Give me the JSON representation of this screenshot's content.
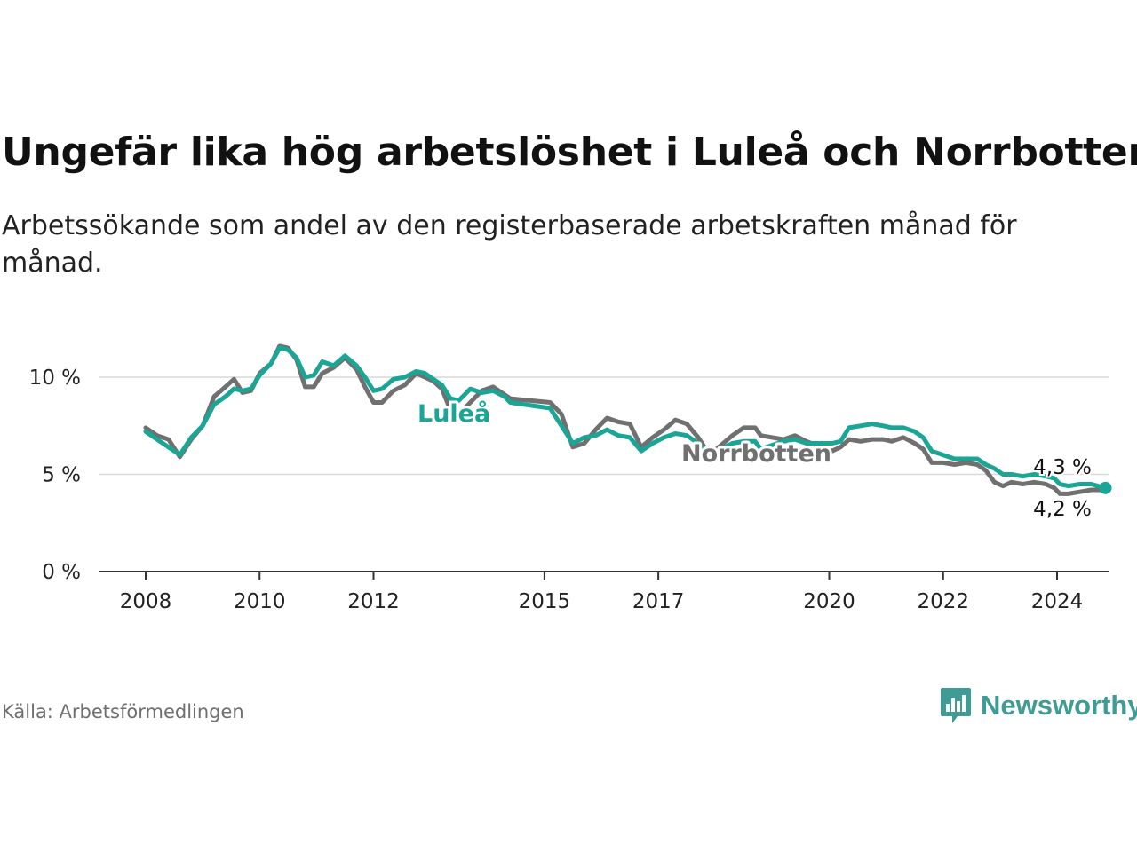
{
  "chart_data": {
    "type": "line",
    "title": "Ungefär lika hög arbetslöshet i Luleå och Norrbotten",
    "subtitle": "Arbetssökande som andel av den registerbaserade arbetskraften månad för månad.",
    "xlabel": "",
    "ylabel": "",
    "ylim": [
      0,
      12
    ],
    "xlim": [
      2007.85,
      2024.9
    ],
    "x_ticks": [
      {
        "value": 2008,
        "label": "2008"
      },
      {
        "value": 2010,
        "label": "2010"
      },
      {
        "value": 2012,
        "label": "2012"
      },
      {
        "value": 2015,
        "label": "2015"
      },
      {
        "value": 2017,
        "label": "2017"
      },
      {
        "value": 2020,
        "label": "2020"
      },
      {
        "value": 2022,
        "label": "2022"
      },
      {
        "value": 2024,
        "label": "2024"
      }
    ],
    "y_ticks": [
      {
        "value": 0,
        "label": "0 %"
      },
      {
        "value": 5,
        "label": "5 %"
      },
      {
        "value": 10,
        "label": "10 %"
      }
    ],
    "grid": true,
    "series": [
      {
        "name": "Norrbotten",
        "label": "Norrbotten",
        "color": "#707070",
        "end_label": "4,2 %",
        "points": [
          [
            2008.0,
            7.4
          ],
          [
            2008.2,
            7.0
          ],
          [
            2008.4,
            6.8
          ],
          [
            2008.6,
            5.9
          ],
          [
            2008.8,
            6.8
          ],
          [
            2009.0,
            7.5
          ],
          [
            2009.2,
            9.0
          ],
          [
            2009.4,
            9.5
          ],
          [
            2009.55,
            9.9
          ],
          [
            2009.7,
            9.2
          ],
          [
            2009.85,
            9.3
          ],
          [
            2010.0,
            10.2
          ],
          [
            2010.2,
            10.7
          ],
          [
            2010.35,
            11.6
          ],
          [
            2010.5,
            11.5
          ],
          [
            2010.65,
            10.9
          ],
          [
            2010.8,
            9.5
          ],
          [
            2010.95,
            9.5
          ],
          [
            2011.1,
            10.2
          ],
          [
            2011.3,
            10.5
          ],
          [
            2011.5,
            11.0
          ],
          [
            2011.7,
            10.4
          ],
          [
            2011.85,
            9.5
          ],
          [
            2012.0,
            8.7
          ],
          [
            2012.15,
            8.7
          ],
          [
            2012.35,
            9.3
          ],
          [
            2012.55,
            9.6
          ],
          [
            2012.75,
            10.2
          ],
          [
            2012.9,
            10.0
          ],
          [
            2013.05,
            9.8
          ],
          [
            2013.2,
            9.4
          ],
          [
            2013.35,
            8.3
          ],
          [
            2013.5,
            8.1
          ],
          [
            2013.7,
            8.7
          ],
          [
            2013.9,
            9.3
          ],
          [
            2014.1,
            9.5
          ],
          [
            2014.3,
            9.1
          ],
          [
            2014.4,
            8.9
          ],
          [
            2015.1,
            8.7
          ],
          [
            2015.3,
            8.1
          ],
          [
            2015.5,
            6.4
          ],
          [
            2015.7,
            6.6
          ],
          [
            2015.9,
            7.3
          ],
          [
            2016.1,
            7.9
          ],
          [
            2016.3,
            7.7
          ],
          [
            2016.5,
            7.6
          ],
          [
            2016.7,
            6.4
          ],
          [
            2016.9,
            6.9
          ],
          [
            2017.1,
            7.3
          ],
          [
            2017.3,
            7.8
          ],
          [
            2017.5,
            7.6
          ],
          [
            2017.7,
            6.9
          ],
          [
            2017.9,
            6.0
          ],
          [
            2018.1,
            6.5
          ],
          [
            2018.3,
            7.0
          ],
          [
            2018.5,
            7.4
          ],
          [
            2018.7,
            7.4
          ],
          [
            2018.8,
            7.0
          ],
          [
            2019.2,
            6.8
          ],
          [
            2019.4,
            7.0
          ],
          [
            2019.6,
            6.7
          ],
          [
            2020.05,
            6.2
          ],
          [
            2020.2,
            6.4
          ],
          [
            2020.35,
            6.8
          ],
          [
            2020.55,
            6.7
          ],
          [
            2020.75,
            6.8
          ],
          [
            2020.95,
            6.8
          ],
          [
            2021.1,
            6.7
          ],
          [
            2021.3,
            6.9
          ],
          [
            2021.5,
            6.6
          ],
          [
            2021.65,
            6.3
          ],
          [
            2021.8,
            5.6
          ],
          [
            2022.0,
            5.6
          ],
          [
            2022.2,
            5.5
          ],
          [
            2022.4,
            5.6
          ],
          [
            2022.6,
            5.5
          ],
          [
            2022.75,
            5.2
          ],
          [
            2022.9,
            4.6
          ],
          [
            2023.05,
            4.4
          ],
          [
            2023.2,
            4.6
          ],
          [
            2023.4,
            4.5
          ],
          [
            2023.6,
            4.6
          ],
          [
            2023.8,
            4.5
          ],
          [
            2023.95,
            4.3
          ],
          [
            2024.05,
            4.0
          ],
          [
            2024.2,
            4.0
          ],
          [
            2024.4,
            4.1
          ],
          [
            2024.6,
            4.2
          ],
          [
            2024.85,
            4.2
          ]
        ]
      },
      {
        "name": "Luleå",
        "label": "Luleå",
        "color": "#1ba595",
        "end_label": "4,3 %",
        "points": [
          [
            2008.0,
            7.2
          ],
          [
            2008.2,
            6.8
          ],
          [
            2008.4,
            6.4
          ],
          [
            2008.6,
            6.0
          ],
          [
            2008.8,
            6.9
          ],
          [
            2009.0,
            7.5
          ],
          [
            2009.2,
            8.6
          ],
          [
            2009.4,
            9.0
          ],
          [
            2009.55,
            9.4
          ],
          [
            2009.7,
            9.3
          ],
          [
            2009.85,
            9.4
          ],
          [
            2010.0,
            10.1
          ],
          [
            2010.2,
            10.7
          ],
          [
            2010.35,
            11.5
          ],
          [
            2010.5,
            11.4
          ],
          [
            2010.65,
            11.0
          ],
          [
            2010.8,
            10.0
          ],
          [
            2010.95,
            10.1
          ],
          [
            2011.1,
            10.8
          ],
          [
            2011.3,
            10.6
          ],
          [
            2011.5,
            11.1
          ],
          [
            2011.7,
            10.6
          ],
          [
            2011.85,
            10.0
          ],
          [
            2012.0,
            9.3
          ],
          [
            2012.15,
            9.4
          ],
          [
            2012.35,
            9.9
          ],
          [
            2012.55,
            10.0
          ],
          [
            2012.75,
            10.3
          ],
          [
            2012.9,
            10.2
          ],
          [
            2013.05,
            9.9
          ],
          [
            2013.2,
            9.6
          ],
          [
            2013.35,
            8.9
          ],
          [
            2013.5,
            8.8
          ],
          [
            2013.7,
            9.4
          ],
          [
            2013.9,
            9.2
          ],
          [
            2014.1,
            9.3
          ],
          [
            2014.3,
            9.0
          ],
          [
            2014.4,
            8.7
          ],
          [
            2015.1,
            8.4
          ],
          [
            2015.3,
            7.5
          ],
          [
            2015.5,
            6.6
          ],
          [
            2015.7,
            6.9
          ],
          [
            2015.9,
            7.0
          ],
          [
            2016.1,
            7.3
          ],
          [
            2016.3,
            7.0
          ],
          [
            2016.5,
            6.9
          ],
          [
            2016.7,
            6.2
          ],
          [
            2016.9,
            6.6
          ],
          [
            2017.1,
            6.9
          ],
          [
            2017.3,
            7.1
          ],
          [
            2017.5,
            7.0
          ],
          [
            2017.7,
            6.6
          ],
          [
            2017.9,
            5.9
          ],
          [
            2018.1,
            6.3
          ],
          [
            2018.3,
            6.6
          ],
          [
            2018.5,
            6.7
          ],
          [
            2018.7,
            6.7
          ],
          [
            2018.8,
            6.3
          ],
          [
            2019.2,
            6.7
          ],
          [
            2019.4,
            6.8
          ],
          [
            2019.6,
            6.6
          ],
          [
            2020.05,
            6.6
          ],
          [
            2020.2,
            6.7
          ],
          [
            2020.35,
            7.4
          ],
          [
            2020.55,
            7.5
          ],
          [
            2020.75,
            7.6
          ],
          [
            2020.95,
            7.5
          ],
          [
            2021.1,
            7.4
          ],
          [
            2021.3,
            7.4
          ],
          [
            2021.5,
            7.2
          ],
          [
            2021.65,
            6.9
          ],
          [
            2021.8,
            6.2
          ],
          [
            2022.0,
            6.0
          ],
          [
            2022.2,
            5.8
          ],
          [
            2022.4,
            5.8
          ],
          [
            2022.6,
            5.8
          ],
          [
            2022.75,
            5.5
          ],
          [
            2022.9,
            5.3
          ],
          [
            2023.05,
            5.0
          ],
          [
            2023.2,
            5.0
          ],
          [
            2023.4,
            4.9
          ],
          [
            2023.6,
            5.0
          ],
          [
            2023.8,
            4.9
          ],
          [
            2023.95,
            4.8
          ],
          [
            2024.05,
            4.5
          ],
          [
            2024.2,
            4.4
          ],
          [
            2024.4,
            4.5
          ],
          [
            2024.6,
            4.5
          ],
          [
            2024.85,
            4.3
          ]
        ]
      }
    ]
  },
  "footer": {
    "source": "Källa: Arbetsförmedlingen",
    "brand": "Newsworthy",
    "brand_color": "#3f9b94"
  }
}
